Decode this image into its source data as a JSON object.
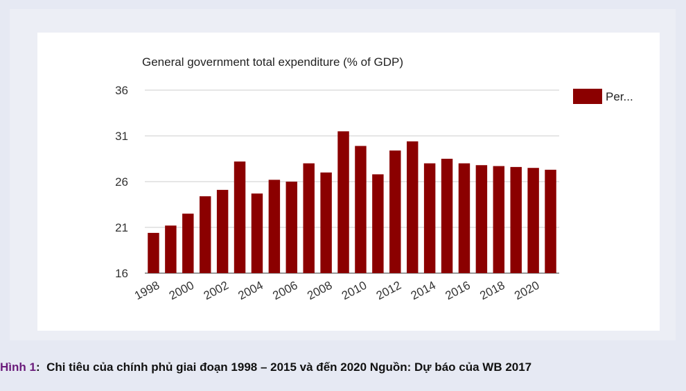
{
  "chart_data": {
    "type": "bar",
    "title": "General government total expenditure (% of GDP)",
    "xlabel": "",
    "ylabel": "",
    "ylim": [
      16,
      36
    ],
    "yticks": [
      16,
      21,
      26,
      31,
      36
    ],
    "grid": true,
    "legend_position": "top-right",
    "x_tick_labels": [
      "1998",
      "2000",
      "2002",
      "2004",
      "2006",
      "2008",
      "2010",
      "2012",
      "2014",
      "2016",
      "2018",
      "2020"
    ],
    "categories": [
      "1998",
      "1999",
      "2000",
      "2001",
      "2002",
      "2003",
      "2004",
      "2005",
      "2006",
      "2007",
      "2008",
      "2009",
      "2010",
      "2011",
      "2012",
      "2013",
      "2014",
      "2015",
      "2016",
      "2017",
      "2018",
      "2019",
      "2020",
      "2021"
    ],
    "series": [
      {
        "name": "Per...",
        "color": "#8b0000",
        "values": [
          20.4,
          21.2,
          22.5,
          24.4,
          25.1,
          28.2,
          24.7,
          26.2,
          26.0,
          28.0,
          27.0,
          31.5,
          29.9,
          26.8,
          29.4,
          30.4,
          28.0,
          28.5,
          28.0,
          27.8,
          27.7,
          27.6,
          27.5,
          27.3
        ]
      }
    ]
  },
  "caption": {
    "label": "Hình 1",
    "separator": ":",
    "text": "Chi tiêu của chính phủ giai đoạn 1998 – 2015 và đến 2020 Nguồn: Dự báo của WB 2017"
  },
  "colors": {
    "bar": "#8b0000",
    "caption_label": "#6a1b7a",
    "background": "#e6e9f3"
  }
}
